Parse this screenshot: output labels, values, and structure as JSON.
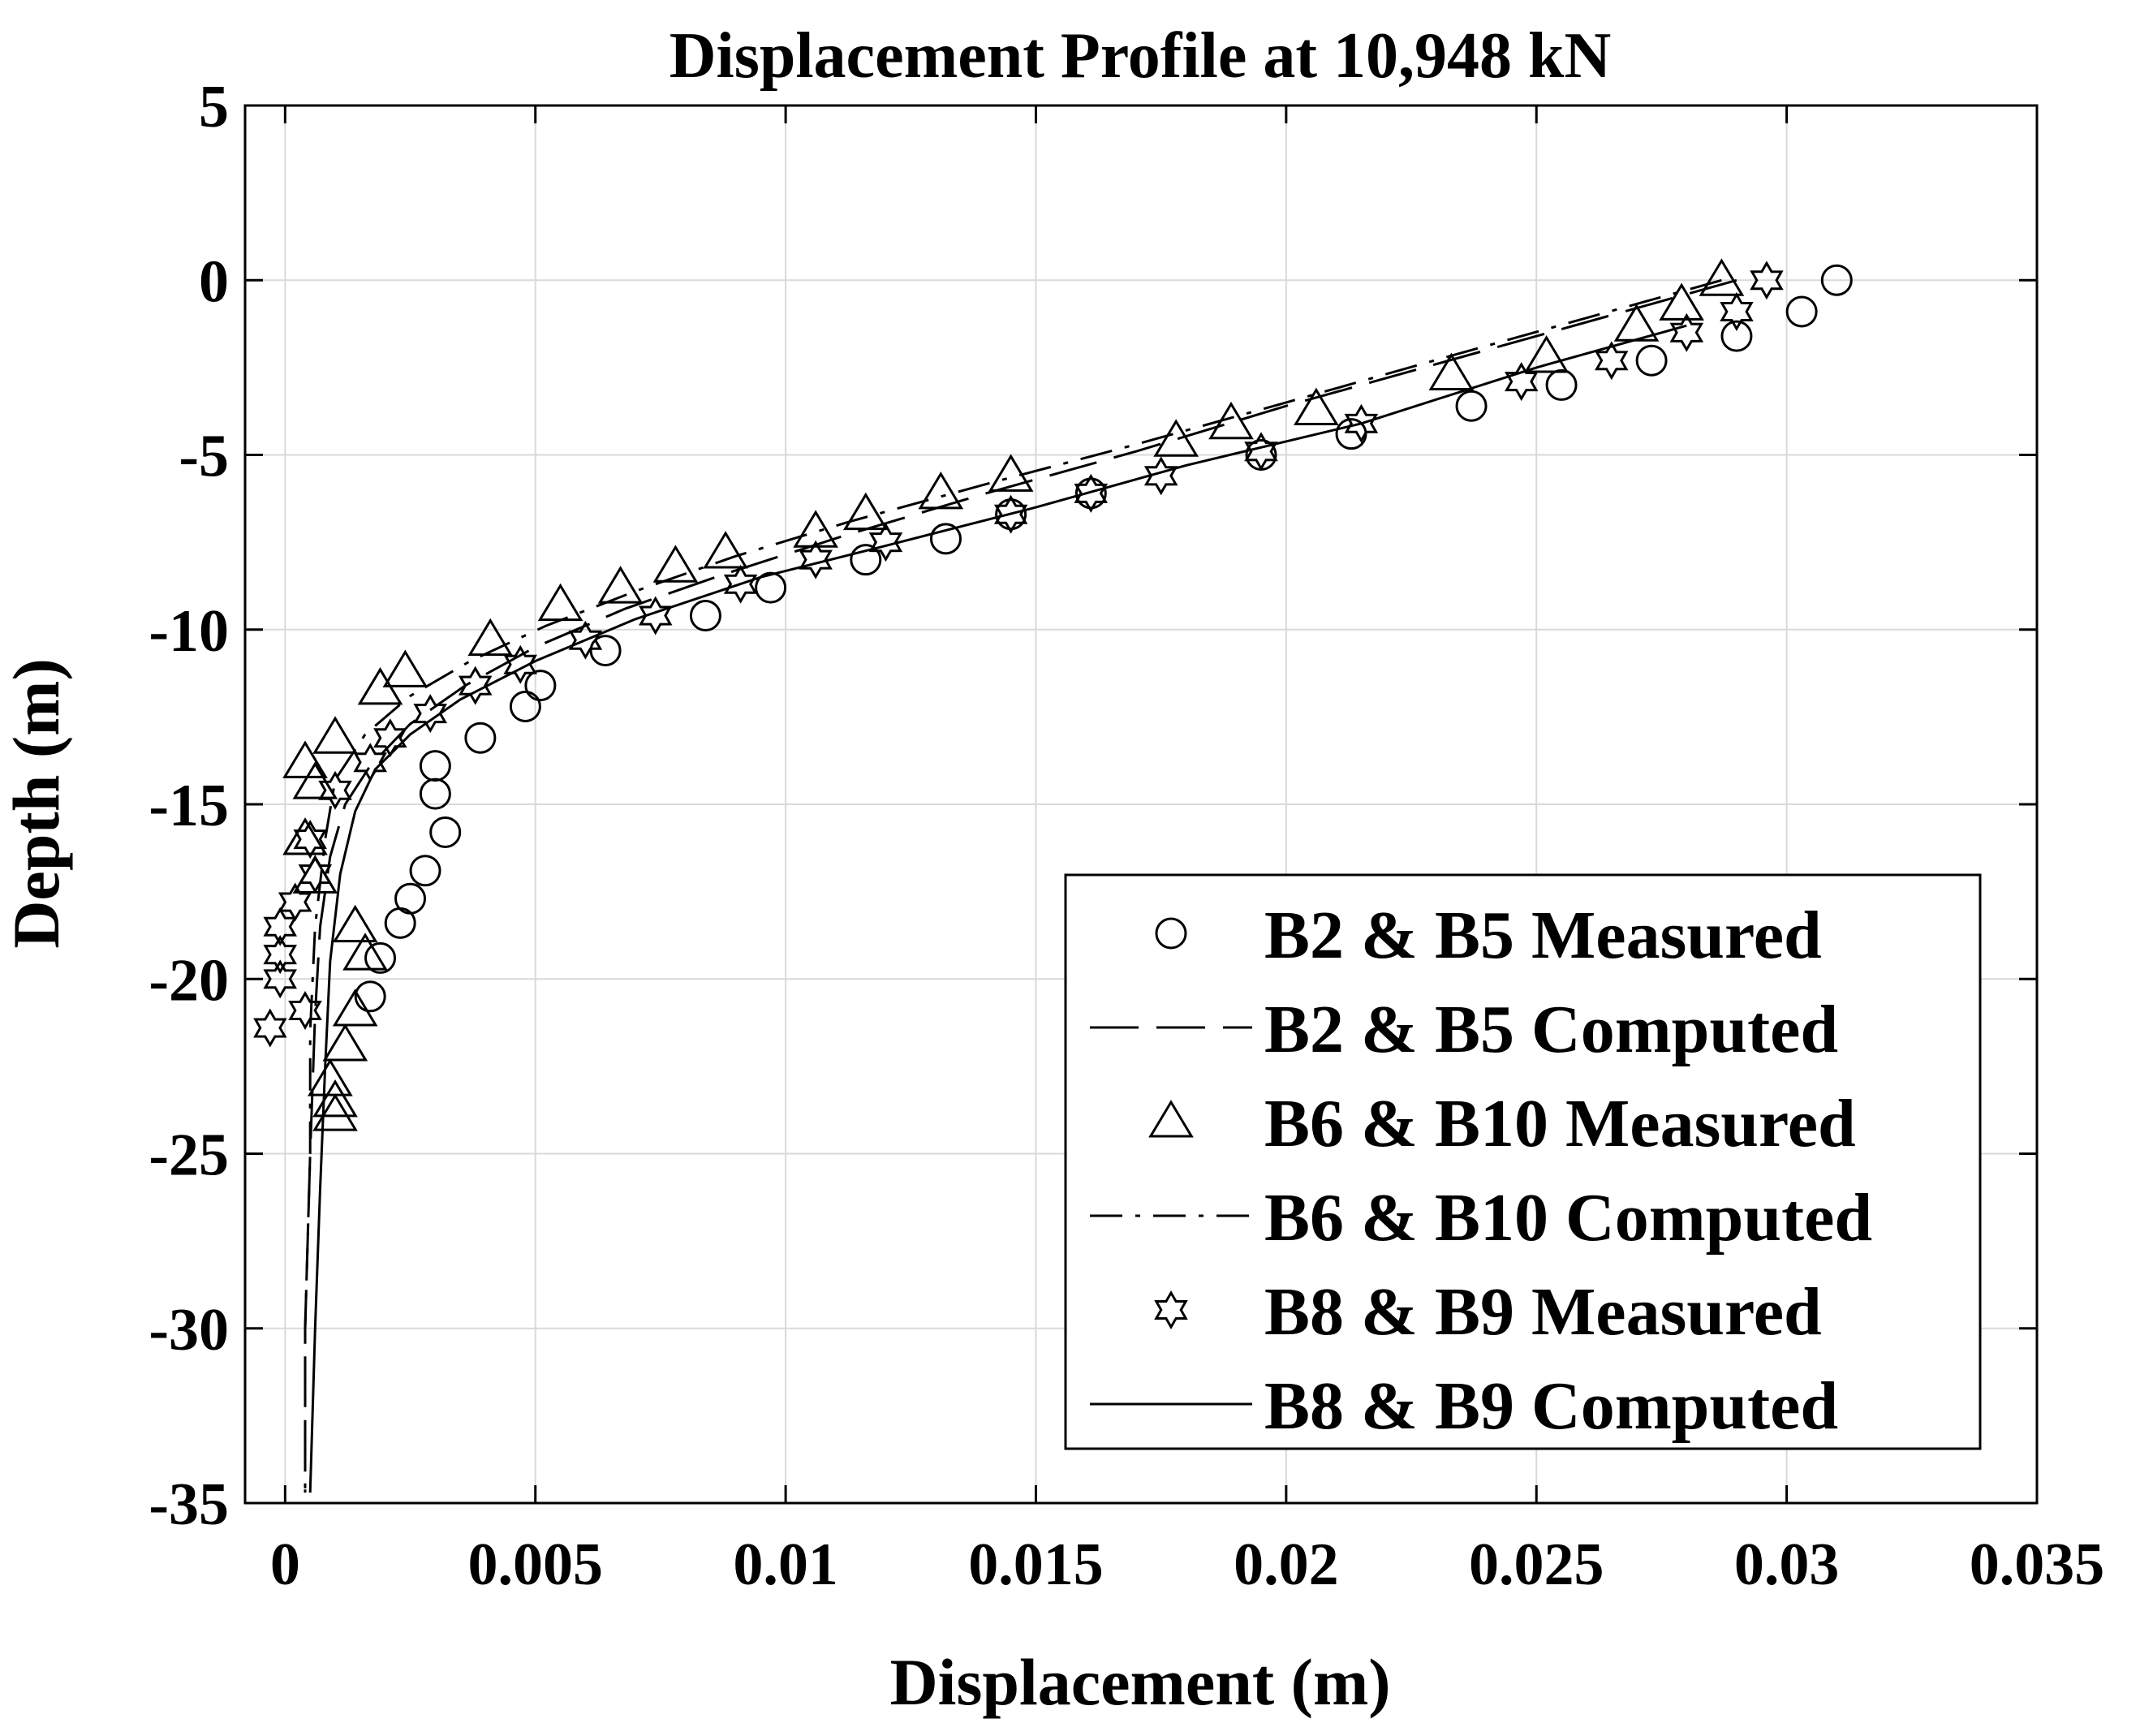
{
  "chart_data": {
    "type": "line",
    "title": "Displacement Profile at 10,948 kN",
    "xlabel": "Displacement (m)",
    "ylabel": "Depth (m)",
    "xlim": [
      -0.0008,
      0.035
    ],
    "ylim": [
      -35,
      5
    ],
    "xticks": [
      0,
      0.005,
      0.01,
      0.015,
      0.02,
      0.025,
      0.03,
      0.035
    ],
    "xtick_labels": [
      "0",
      "0.005",
      "0.01",
      "0.015",
      "0.02",
      "0.025",
      "0.03",
      "0.035"
    ],
    "yticks": [
      5,
      0,
      -5,
      -10,
      -15,
      -20,
      -25,
      -30,
      -35
    ],
    "ytick_labels": [
      "5",
      "0",
      "-5",
      "-10",
      "-15",
      "-20",
      "-25",
      "-30",
      "-35"
    ],
    "grid": true,
    "legend_position": "bottom-right",
    "series": [
      {
        "name": "B2 & B5 Measured",
        "kind": "scatter",
        "marker": "circle",
        "points": [
          [
            0.031,
            0.0
          ],
          [
            0.0303,
            -0.9
          ],
          [
            0.029,
            -1.6
          ],
          [
            0.0273,
            -2.3
          ],
          [
            0.0255,
            -3.0
          ],
          [
            0.0237,
            -3.6
          ],
          [
            0.0213,
            -4.4
          ],
          [
            0.0195,
            -5.0
          ],
          [
            0.0161,
            -6.1
          ],
          [
            0.0145,
            -6.7
          ],
          [
            0.0132,
            -7.4
          ],
          [
            0.0116,
            -8.0
          ],
          [
            0.0097,
            -8.8
          ],
          [
            0.0084,
            -9.6
          ],
          [
            0.0064,
            -10.6
          ],
          [
            0.0051,
            -11.6
          ],
          [
            0.0048,
            -12.2
          ],
          [
            0.0039,
            -13.1
          ],
          [
            0.003,
            -13.9
          ],
          [
            0.003,
            -14.7
          ],
          [
            0.0032,
            -15.8
          ],
          [
            0.0028,
            -16.9
          ],
          [
            0.0025,
            -17.7
          ],
          [
            0.0023,
            -18.4
          ],
          [
            0.0019,
            -19.4
          ],
          [
            0.0017,
            -20.5
          ]
        ]
      },
      {
        "name": "B2 & B5 Computed",
        "kind": "line",
        "dash": "dashed",
        "points": [
          [
            0.029,
            0.0
          ],
          [
            0.0265,
            -1.0
          ],
          [
            0.0235,
            -2.2
          ],
          [
            0.02,
            -3.6
          ],
          [
            0.017,
            -4.9
          ],
          [
            0.014,
            -6.1
          ],
          [
            0.0112,
            -7.3
          ],
          [
            0.0088,
            -8.4
          ],
          [
            0.0068,
            -9.4
          ],
          [
            0.005,
            -10.5
          ],
          [
            0.0036,
            -11.6
          ],
          [
            0.0025,
            -12.7
          ],
          [
            0.0017,
            -13.9
          ],
          [
            0.0012,
            -15.0
          ],
          [
            0.0009,
            -16.5
          ],
          [
            0.0007,
            -18.5
          ],
          [
            0.0006,
            -21.0
          ],
          [
            0.0005,
            -25.0
          ],
          [
            0.0004,
            -30.0
          ],
          [
            0.0004,
            -34.7
          ]
        ]
      },
      {
        "name": "B6 & B10 Measured",
        "kind": "scatter",
        "marker": "triangle",
        "points": [
          [
            0.0287,
            0.0
          ],
          [
            0.0279,
            -0.7
          ],
          [
            0.027,
            -1.3
          ],
          [
            0.0252,
            -2.2
          ],
          [
            0.0233,
            -2.7
          ],
          [
            0.0206,
            -3.7
          ],
          [
            0.0189,
            -4.1
          ],
          [
            0.0178,
            -4.6
          ],
          [
            0.0145,
            -5.6
          ],
          [
            0.0131,
            -6.1
          ],
          [
            0.0116,
            -6.7
          ],
          [
            0.0106,
            -7.2
          ],
          [
            0.0088,
            -7.8
          ],
          [
            0.0078,
            -8.2
          ],
          [
            0.0067,
            -8.8
          ],
          [
            0.0055,
            -9.3
          ],
          [
            0.0041,
            -10.3
          ],
          [
            0.0024,
            -11.2
          ],
          [
            0.0019,
            -11.7
          ],
          [
            0.001,
            -13.1
          ],
          [
            0.0004,
            -13.8
          ],
          [
            0.0006,
            -14.4
          ],
          [
            0.0004,
            -16.0
          ],
          [
            0.0006,
            -17.1
          ],
          [
            0.0014,
            -18.5
          ],
          [
            0.0016,
            -19.3
          ],
          [
            0.0014,
            -20.9
          ],
          [
            0.0012,
            -21.9
          ],
          [
            0.0009,
            -22.9
          ],
          [
            0.001,
            -23.5
          ],
          [
            0.001,
            -23.9
          ]
        ]
      },
      {
        "name": "B6 & B10 Computed",
        "kind": "line",
        "dash": "dashdot",
        "points": [
          [
            0.0287,
            0.0
          ],
          [
            0.0262,
            -1.0
          ],
          [
            0.0232,
            -2.2
          ],
          [
            0.02,
            -3.5
          ],
          [
            0.017,
            -4.7
          ],
          [
            0.0141,
            -5.8
          ],
          [
            0.0113,
            -6.9
          ],
          [
            0.009,
            -7.9
          ],
          [
            0.007,
            -8.9
          ],
          [
            0.0052,
            -9.9
          ],
          [
            0.0037,
            -10.9
          ],
          [
            0.0025,
            -11.9
          ],
          [
            0.0016,
            -13.0
          ],
          [
            0.001,
            -14.3
          ],
          [
            0.0008,
            -16.0
          ],
          [
            0.0006,
            -18.5
          ],
          [
            0.0005,
            -21.5
          ],
          [
            0.0005,
            -25.0
          ],
          [
            0.0004,
            -30.0
          ],
          [
            0.0004,
            -34.7
          ]
        ]
      },
      {
        "name": "B8 & B9 Measured",
        "kind": "scatter",
        "marker": "star",
        "points": [
          [
            0.0296,
            0.0
          ],
          [
            0.029,
            -0.9
          ],
          [
            0.028,
            -1.5
          ],
          [
            0.0265,
            -2.3
          ],
          [
            0.0247,
            -2.9
          ],
          [
            0.0215,
            -4.1
          ],
          [
            0.0195,
            -4.9
          ],
          [
            0.0175,
            -5.6
          ],
          [
            0.0161,
            -6.1
          ],
          [
            0.0145,
            -6.7
          ],
          [
            0.012,
            -7.5
          ],
          [
            0.0106,
            -8.0
          ],
          [
            0.0091,
            -8.7
          ],
          [
            0.0074,
            -9.6
          ],
          [
            0.006,
            -10.3
          ],
          [
            0.0047,
            -11.0
          ],
          [
            0.0038,
            -11.6
          ],
          [
            0.0029,
            -12.4
          ],
          [
            0.0021,
            -13.1
          ],
          [
            0.0017,
            -13.8
          ],
          [
            0.001,
            -14.6
          ],
          [
            0.0005,
            -16.0
          ],
          [
            0.0006,
            -17.0
          ],
          [
            0.0002,
            -17.8
          ],
          [
            -0.0001,
            -18.5
          ],
          [
            -0.0001,
            -19.3
          ],
          [
            -0.0001,
            -20.0
          ],
          [
            0.0004,
            -20.9
          ],
          [
            -0.0003,
            -21.4
          ]
        ]
      },
      {
        "name": "B8 & B9 Computed",
        "kind": "line",
        "dash": "solid",
        "points": [
          [
            0.028,
            -1.3
          ],
          [
            0.025,
            -2.5
          ],
          [
            0.0215,
            -4.1
          ],
          [
            0.018,
            -5.3
          ],
          [
            0.015,
            -6.5
          ],
          [
            0.012,
            -7.6
          ],
          [
            0.0095,
            -8.5
          ],
          [
            0.007,
            -9.7
          ],
          [
            0.005,
            -10.9
          ],
          [
            0.0035,
            -12.0
          ],
          [
            0.0025,
            -13.0
          ],
          [
            0.0018,
            -14.0
          ],
          [
            0.0014,
            -15.2
          ],
          [
            0.0011,
            -17.0
          ],
          [
            0.0009,
            -19.5
          ],
          [
            0.0008,
            -22.5
          ],
          [
            0.0007,
            -26.0
          ],
          [
            0.0006,
            -30.0
          ],
          [
            0.0005,
            -34.7
          ]
        ]
      }
    ]
  }
}
